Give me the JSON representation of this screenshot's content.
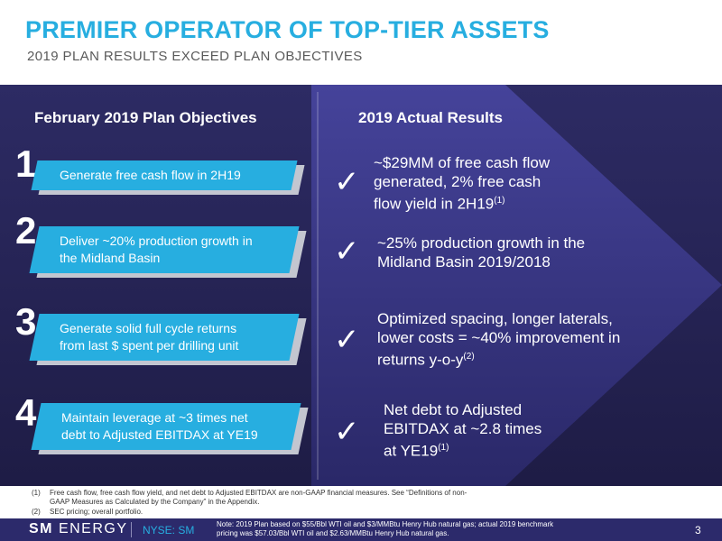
{
  "header": {
    "title": "PREMIER OPERATOR OF TOP-TIER ASSETS",
    "subtitle": "2019 PLAN RESULTS EXCEED PLAN OBJECTIVES"
  },
  "columns": {
    "objectives_title": "February 2019 Plan Objectives",
    "results_title": "2019 Actual Results"
  },
  "objectives": [
    {
      "number": "1",
      "line1": "Generate free cash flow in 2H19",
      "line2": ""
    },
    {
      "number": "2",
      "line1": "Deliver ~20% production growth in",
      "line2": "the Midland Basin"
    },
    {
      "number": "3",
      "line1": "Generate solid full cycle returns",
      "line2": "from last $ spent per drilling unit"
    },
    {
      "number": "4",
      "line1": "Maintain leverage at ~3 times net",
      "line2": "debt to Adjusted EBITDAX at YE19"
    }
  ],
  "results": [
    {
      "check": "✓",
      "lines": [
        "~$29MM of free cash flow",
        "generated, 2% free cash",
        "flow yield in 2H19"
      ],
      "ref": "(1)"
    },
    {
      "check": "✓",
      "lines": [
        "~25% production growth in the",
        "Midland Basin 2019/2018"
      ],
      "ref": ""
    },
    {
      "check": "✓",
      "lines": [
        "Optimized spacing, longer laterals,",
        "lower costs = ~40% improvement in",
        "returns y-o-y"
      ],
      "ref": "(2)"
    },
    {
      "check": "✓",
      "lines": [
        "Net debt to Adjusted",
        "EBITDAX at ~2.8 times",
        "at YE19"
      ],
      "ref": "(1)"
    }
  ],
  "footnotes": [
    {
      "num": "(1)",
      "text": "Free cash flow, free cash flow yield, and net debt to Adjusted EBITDAX are non-GAAP financial measures. See “Definitions of non-",
      "text2": "GAAP Measures as Calculated by the Company” in the Appendix."
    },
    {
      "num": "(2)",
      "text": "SEC pricing; overall portfolio.",
      "text2": ""
    }
  ],
  "footer": {
    "logo_bold": "SM",
    "logo_light": "ENERGY",
    "ticker": "NYSE: SM",
    "note_line1": "Note: 2019 Plan based on $55/Bbl WTI oil and $3/MMBtu Henry Hub natural gas; actual 2019 benchmark",
    "note_line2": "pricing was $57.03/Bbl WTI oil and $2.63/MMBtu Henry Hub natural gas.",
    "page": "3"
  },
  "colors": {
    "accent": "#27aee0",
    "navy": "#2c2a6b",
    "panel_dark": "#262453",
    "panel_light": "#3d3b86"
  }
}
